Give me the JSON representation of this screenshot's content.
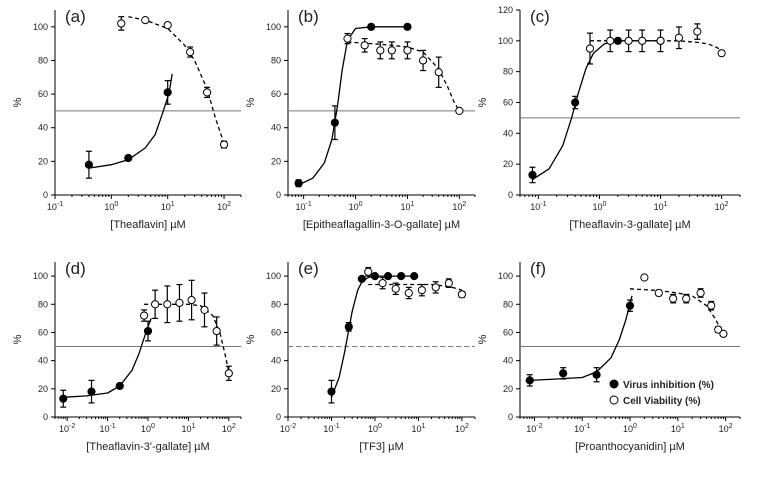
{
  "legend": {
    "virus": "Virus inhibition (%)",
    "viability": "Cell Viability (%)"
  },
  "chart_data": [
    {
      "type": "scatter",
      "panel": "(a)",
      "xlabel": "[Theaflavin] µM",
      "ylabel": "%",
      "xscale": "log",
      "xlim": [
        0.1,
        200
      ],
      "ylim": [
        0,
        110
      ],
      "xticks": [
        {
          "v": 0.1,
          "m": "10",
          "e": "-1"
        },
        {
          "v": 1,
          "m": "10",
          "e": "0"
        },
        {
          "v": 10,
          "m": "10",
          "e": "1"
        },
        {
          "v": 100,
          "m": "10",
          "e": "2"
        }
      ],
      "yticks": [
        0,
        20,
        40,
        60,
        80,
        100
      ],
      "hline": 50,
      "hline_style": "solid",
      "series": [
        {
          "name": "Virus inhibition (%)",
          "marker": "filled",
          "x": [
            0.4,
            2,
            10
          ],
          "y": [
            18,
            22,
            61
          ],
          "err": [
            8,
            1,
            7
          ],
          "curve": {
            "x": [
              0.4,
              1,
              2,
              4,
              6,
              8,
              10,
              11,
              12
            ],
            "y": [
              16,
              18,
              21,
              28,
              36,
              48,
              58,
              64,
              72
            ]
          }
        },
        {
          "name": "Cell Viability (%)",
          "marker": "open",
          "x": [
            1.5,
            4,
            10,
            25,
            50,
            100
          ],
          "y": [
            102,
            104,
            101,
            85,
            61,
            30
          ],
          "err": [
            4,
            1,
            1,
            3,
            3,
            2
          ],
          "curve": {
            "x": [
              2,
              4,
              10,
              20,
              30,
              50,
              70,
              90,
              100
            ],
            "y": [
              106,
              104,
              99,
              89,
              80,
              63,
              46,
              35,
              30
            ]
          }
        }
      ]
    },
    {
      "type": "scatter",
      "panel": "(b)",
      "xlabel": "[Epitheaflagallin-3-O-gallate] µM",
      "ylabel": "%",
      "xscale": "log",
      "xlim": [
        0.05,
        200
      ],
      "ylim": [
        0,
        110
      ],
      "xticks": [
        {
          "v": 0.1,
          "m": "10",
          "e": "-1"
        },
        {
          "v": 1,
          "m": "10",
          "e": "0"
        },
        {
          "v": 10,
          "m": "10",
          "e": "1"
        },
        {
          "v": 100,
          "m": "10",
          "e": "2"
        }
      ],
      "yticks": [
        0,
        20,
        40,
        60,
        80,
        100
      ],
      "hline": 50,
      "hline_style": "solid",
      "series": [
        {
          "name": "Virus inhibition (%)",
          "marker": "filled",
          "x": [
            0.08,
            0.4,
            2,
            10
          ],
          "y": [
            7,
            43,
            100,
            100
          ],
          "err": [
            2,
            10,
            0,
            0
          ],
          "curve": {
            "x": [
              0.08,
              0.15,
              0.25,
              0.35,
              0.45,
              0.55,
              0.7,
              1,
              2,
              10
            ],
            "y": [
              6,
              10,
              19,
              33,
              53,
              74,
              92,
              99,
              100,
              100
            ]
          }
        },
        {
          "name": "Cell Viability (%)",
          "marker": "open",
          "x": [
            0.7,
            1.5,
            3,
            5,
            10,
            20,
            40,
            100
          ],
          "y": [
            93,
            89,
            86,
            86,
            86,
            80,
            73,
            50
          ],
          "err": [
            3,
            4,
            5,
            5,
            5,
            6,
            9,
            1
          ],
          "curve": {
            "x": [
              0.7,
              2,
              5,
              10,
              20,
              40,
              60,
              80,
              100
            ],
            "y": [
              91,
              90,
              89,
              88,
              85,
              75,
              64,
              55,
              50
            ]
          }
        }
      ]
    },
    {
      "type": "scatter",
      "panel": "(c)",
      "xlabel": "[Theaflavin-3-gallate] µM",
      "ylabel": "%",
      "xscale": "log",
      "xlim": [
        0.05,
        200
      ],
      "ylim": [
        0,
        120
      ],
      "xticks": [
        {
          "v": 0.1,
          "m": "10",
          "e": "-1"
        },
        {
          "v": 1,
          "m": "10",
          "e": "0"
        },
        {
          "v": 10,
          "m": "10",
          "e": "1"
        },
        {
          "v": 100,
          "m": "10",
          "e": "2"
        }
      ],
      "yticks": [
        0,
        20,
        40,
        60,
        80,
        100,
        120
      ],
      "hline": 50,
      "hline_style": "solid",
      "series": [
        {
          "name": "Virus inhibition (%)",
          "marker": "filled",
          "x": [
            0.08,
            0.4,
            2,
            10
          ],
          "y": [
            13,
            60,
            100,
            100
          ],
          "err": [
            5,
            4,
            0,
            0
          ],
          "curve": {
            "x": [
              0.08,
              0.15,
              0.25,
              0.35,
              0.45,
              0.6,
              0.8,
              1.2,
              2,
              10
            ],
            "y": [
              10,
              17,
              32,
              50,
              66,
              82,
              92,
              98,
              100,
              100
            ]
          }
        },
        {
          "name": "Cell Viability (%)",
          "marker": "open",
          "x": [
            0.7,
            1.5,
            3,
            5,
            10,
            20,
            40,
            100
          ],
          "y": [
            95,
            100,
            100,
            100,
            100,
            102,
            106,
            92
          ],
          "err": [
            10,
            7,
            7,
            7,
            7,
            7,
            5,
            1
          ],
          "curve": {
            "x": [
              0.7,
              2,
              5,
              10,
              20,
              40,
              60,
              80,
              100
            ],
            "y": [
              100,
              100,
              100,
              100,
              100,
              99,
              98,
              96,
              94
            ]
          }
        }
      ]
    },
    {
      "type": "scatter",
      "panel": "(d)",
      "xlabel": "[Theaflavin-3'-gallate] µM",
      "ylabel": "%",
      "xscale": "log",
      "xlim": [
        0.005,
        200
      ],
      "ylim": [
        0,
        110
      ],
      "xticks": [
        {
          "v": 0.01,
          "m": "10",
          "e": "-2"
        },
        {
          "v": 0.1,
          "m": "10",
          "e": "-1"
        },
        {
          "v": 1,
          "m": "10",
          "e": "0"
        },
        {
          "v": 10,
          "m": "10",
          "e": "1"
        },
        {
          "v": 100,
          "m": "10",
          "e": "2"
        }
      ],
      "yticks": [
        0,
        20,
        40,
        60,
        80,
        100
      ],
      "hline": 50,
      "hline_style": "solid",
      "series": [
        {
          "name": "Virus inhibition (%)",
          "marker": "filled",
          "x": [
            0.008,
            0.04,
            0.2,
            1
          ],
          "y": [
            13,
            18,
            22,
            61
          ],
          "err": [
            6,
            8,
            1,
            7
          ],
          "curve": {
            "x": [
              0.008,
              0.03,
              0.1,
              0.2,
              0.4,
              0.6,
              0.8,
              1,
              1.2
            ],
            "y": [
              14,
              15,
              17,
              22,
              33,
              45,
              56,
              64,
              70
            ]
          }
        },
        {
          "name": "Cell Viability (%)",
          "marker": "open",
          "x": [
            0.8,
            1.5,
            3,
            6,
            12,
            25,
            50,
            100
          ],
          "y": [
            72,
            80,
            80,
            81,
            83,
            76,
            61,
            31
          ],
          "err": [
            4,
            10,
            13,
            13,
            14,
            12,
            10,
            5
          ],
          "curve": {
            "x": [
              0.8,
              2,
              5,
              10,
              20,
              40,
              60,
              80,
              100
            ],
            "y": [
              80,
              80,
              80,
              80,
              79,
              72,
              60,
              45,
              32
            ]
          }
        }
      ]
    },
    {
      "type": "scatter",
      "panel": "(e)",
      "xlabel": "[TF3] µM",
      "ylabel": "%",
      "xscale": "log",
      "xlim": [
        0.01,
        200
      ],
      "ylim": [
        0,
        110
      ],
      "xticks": [
        {
          "v": 0.01,
          "m": "10",
          "e": "-2"
        },
        {
          "v": 0.1,
          "m": "10",
          "e": "-1"
        },
        {
          "v": 1,
          "m": "10",
          "e": "0"
        },
        {
          "v": 10,
          "m": "10",
          "e": "1"
        },
        {
          "v": 100,
          "m": "10",
          "e": "2"
        }
      ],
      "yticks": [
        0,
        20,
        40,
        60,
        80,
        100
      ],
      "hline": 50,
      "hline_style": "dashed",
      "series": [
        {
          "name": "Virus inhibition (%)",
          "marker": "filled",
          "x": [
            0.1,
            0.25,
            0.5,
            1,
            2,
            4,
            8
          ],
          "y": [
            18,
            64,
            98,
            100,
            100,
            100,
            100
          ],
          "err": [
            8,
            3,
            1,
            0,
            0,
            0,
            0
          ],
          "curve": {
            "x": [
              0.1,
              0.15,
              0.2,
              0.25,
              0.3,
              0.4,
              0.5,
              0.7,
              1,
              8
            ],
            "y": [
              14,
              28,
              46,
              62,
              75,
              90,
              96,
              99,
              100,
              100
            ]
          }
        },
        {
          "name": "Cell Viability (%)",
          "marker": "open",
          "x": [
            0.7,
            1.5,
            3,
            6,
            12,
            25,
            50,
            100
          ],
          "y": [
            103,
            95,
            91,
            88,
            90,
            92,
            95,
            87
          ],
          "err": [
            3,
            4,
            4,
            4,
            4,
            4,
            3,
            2
          ],
          "curve": {
            "x": [
              0.7,
              2,
              5,
              10,
              20,
              40,
              60,
              80,
              100
            ],
            "y": [
              94,
              94,
              94,
              94,
              94,
              93,
              92,
              91,
              90
            ]
          }
        }
      ]
    },
    {
      "type": "scatter",
      "panel": "(f)",
      "xlabel": "[Proanthocyanidin] µM",
      "ylabel": "%",
      "xscale": "log",
      "xlim": [
        0.005,
        200
      ],
      "ylim": [
        0,
        110
      ],
      "xticks": [
        {
          "v": 0.01,
          "m": "10",
          "e": "-2"
        },
        {
          "v": 0.1,
          "m": "10",
          "e": "-1"
        },
        {
          "v": 1,
          "m": "10",
          "e": "0"
        },
        {
          "v": 10,
          "m": "10",
          "e": "1"
        },
        {
          "v": 100,
          "m": "10",
          "e": "2"
        }
      ],
      "yticks": [
        0,
        20,
        40,
        60,
        80,
        100
      ],
      "hline": 50,
      "hline_style": "solid",
      "series": [
        {
          "name": "Virus inhibition (%)",
          "marker": "filled",
          "x": [
            0.008,
            0.04,
            0.2,
            1
          ],
          "y": [
            26,
            31,
            30,
            79
          ],
          "err": [
            4,
            4,
            5,
            4
          ],
          "curve": {
            "x": [
              0.008,
              0.03,
              0.1,
              0.2,
              0.4,
              0.6,
              0.8,
              1,
              1.1
            ],
            "y": [
              26,
              27,
              28,
              32,
              42,
              55,
              68,
              80,
              86
            ]
          }
        },
        {
          "name": "Cell Viability (%)",
          "marker": "open",
          "x": [
            2,
            4,
            8,
            15,
            30,
            50,
            70,
            90
          ],
          "y": [
            99,
            88,
            84,
            84,
            88,
            79,
            62,
            59
          ],
          "err": [
            0,
            2,
            3,
            3,
            3,
            3,
            2,
            1
          ],
          "curve": {
            "x": [
              1,
              3,
              6,
              10,
              20,
              40,
              60,
              80,
              100
            ],
            "y": [
              91,
              90,
              89,
              88,
              86,
              79,
              70,
              62,
              57
            ]
          }
        }
      ]
    }
  ]
}
